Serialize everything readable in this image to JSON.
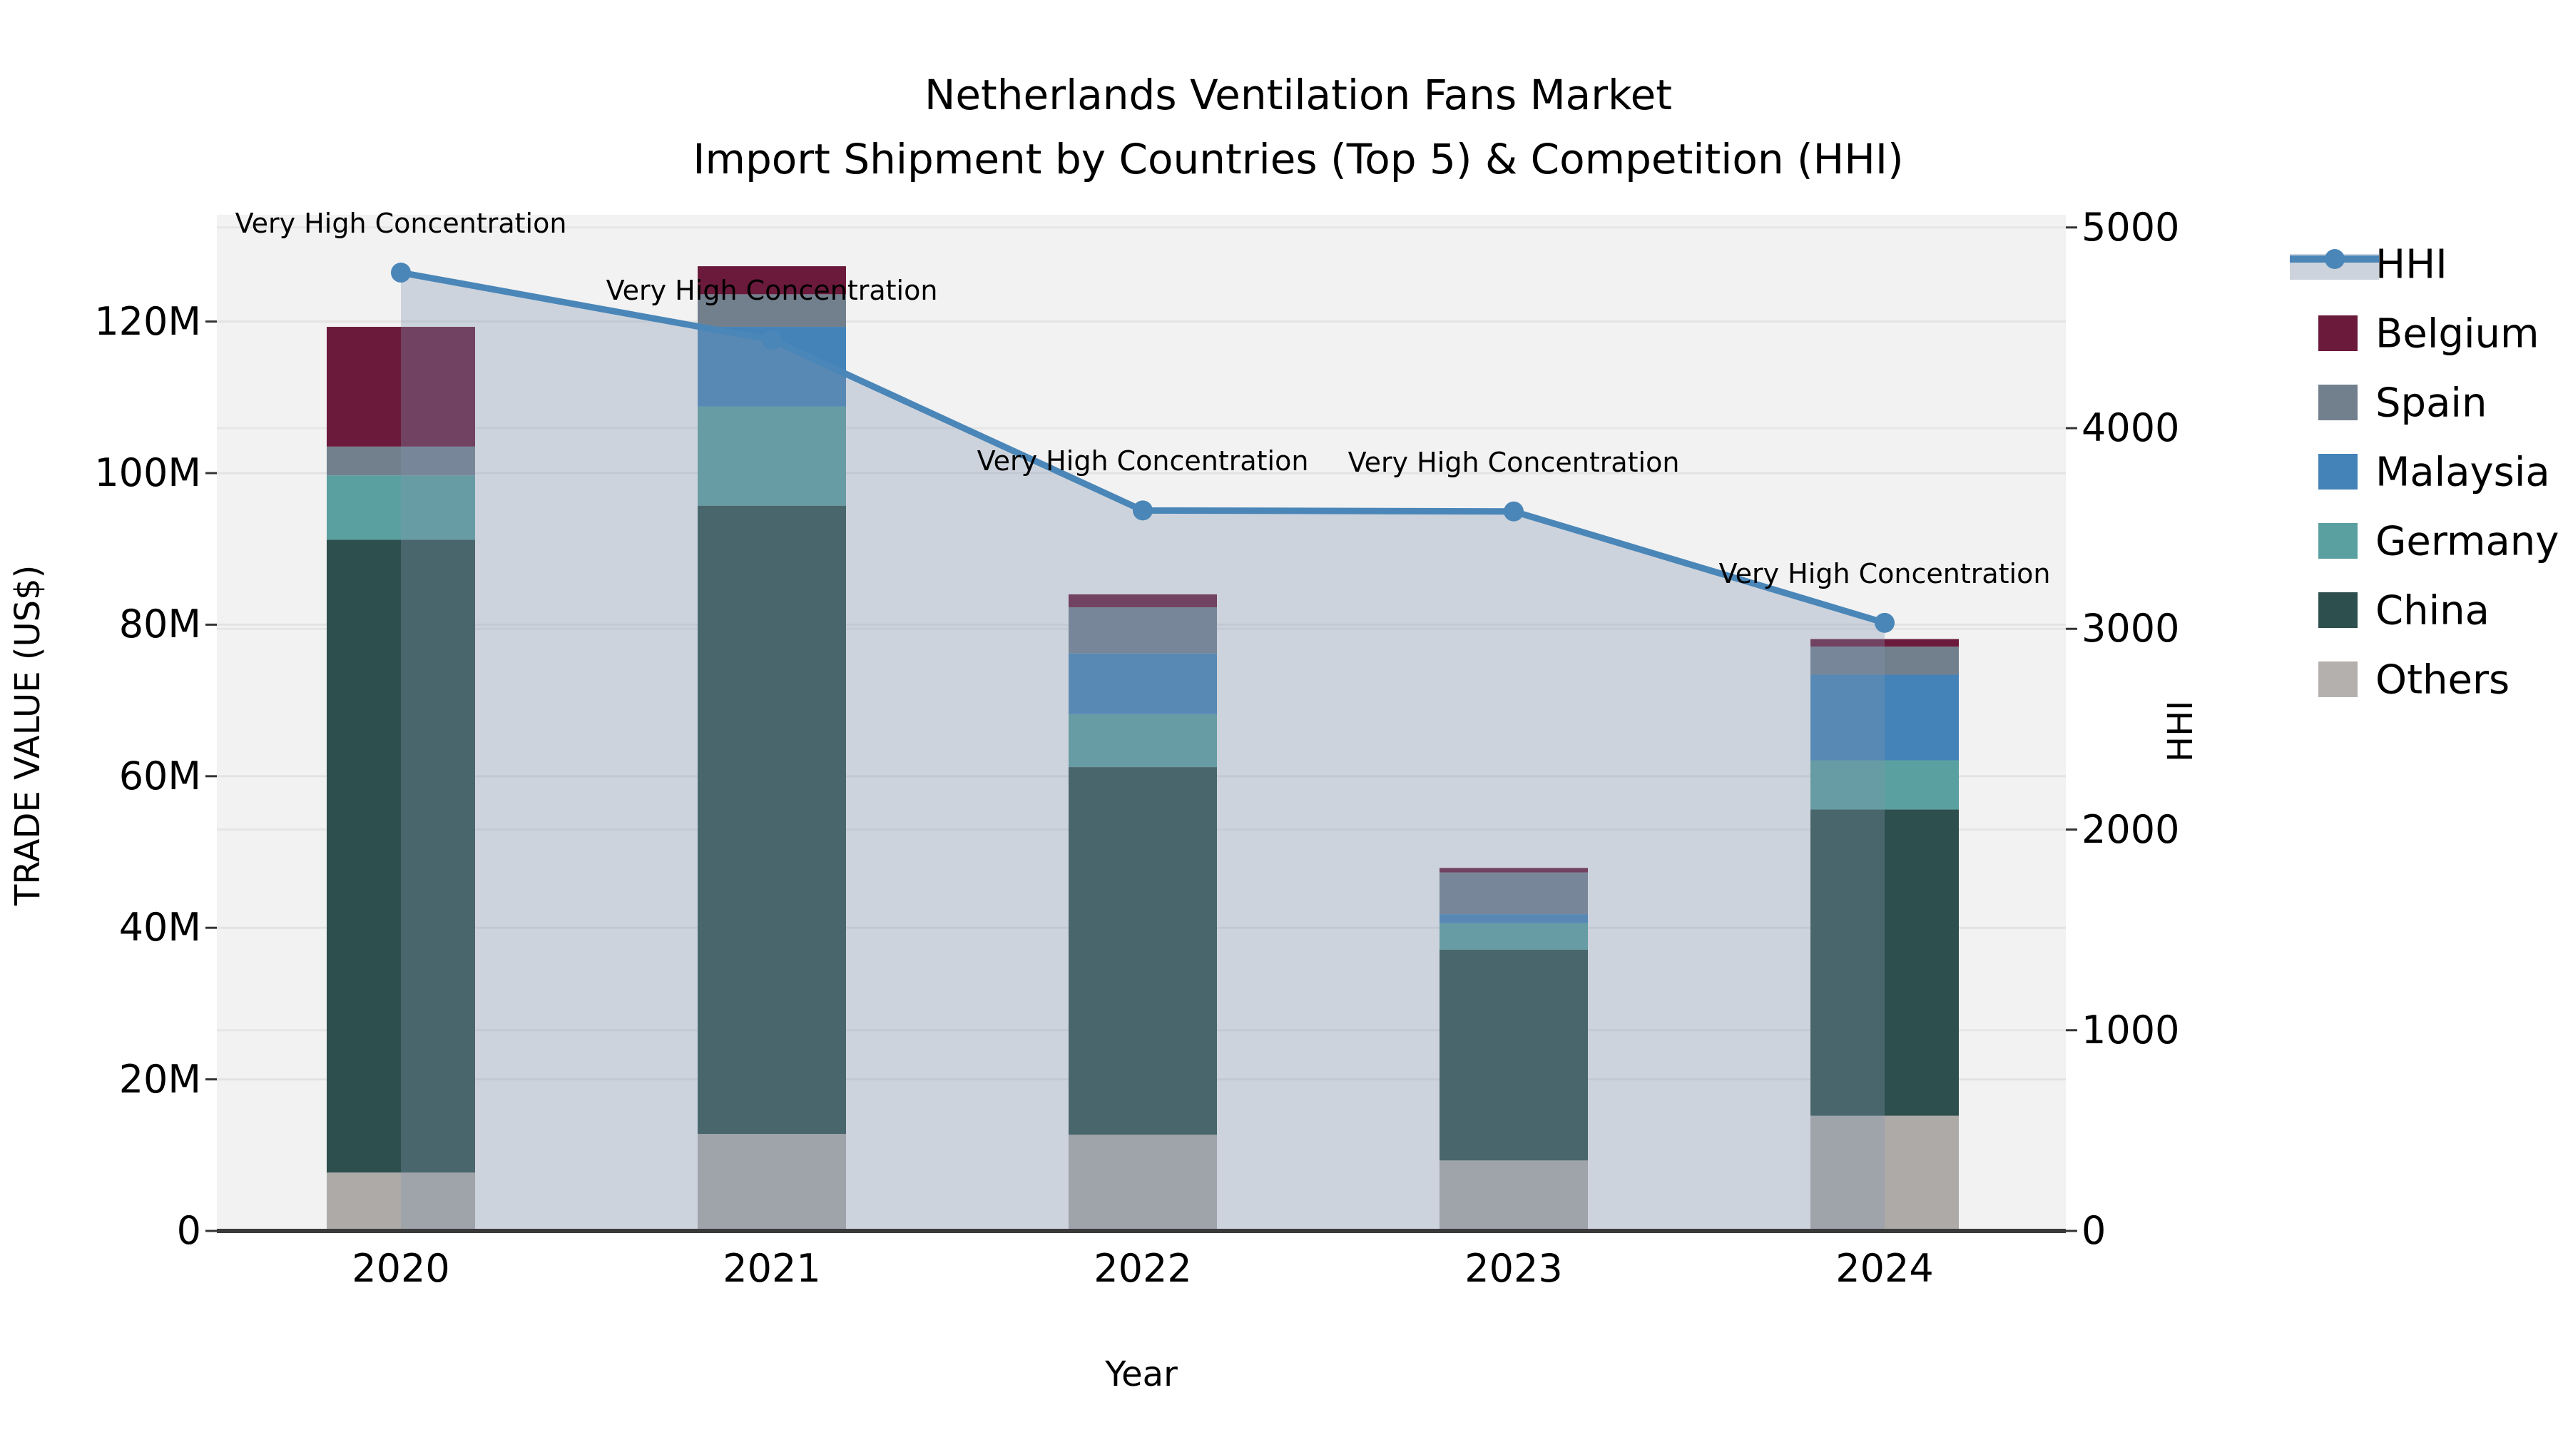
{
  "title": {
    "line1": "Netherlands Ventilation Fans Market",
    "line2": "Import Shipment by Countries (Top 5) & Competition (HHI)"
  },
  "axes": {
    "left": {
      "label": "TRADE VALUE (US$)",
      "ticks": [
        "0",
        "20M",
        "40M",
        "60M",
        "80M",
        "100M",
        "120M"
      ]
    },
    "right": {
      "label": "HHI",
      "ticks": [
        "0",
        "1000",
        "2000",
        "3000",
        "4000",
        "5000"
      ]
    },
    "x": {
      "label": "Year",
      "ticks": [
        "2020",
        "2021",
        "2022",
        "2023",
        "2024"
      ]
    }
  },
  "legend": {
    "items": [
      {
        "label": "HHI",
        "type": "line",
        "color": "#4A86B8"
      },
      {
        "label": "Belgium",
        "type": "patch",
        "color": "#6B1A3C"
      },
      {
        "label": "Spain",
        "type": "patch",
        "color": "#72808E"
      },
      {
        "label": "Malaysia",
        "type": "patch",
        "color": "#4483B8"
      },
      {
        "label": "Germany",
        "type": "patch",
        "color": "#5BA0A0"
      },
      {
        "label": "China",
        "type": "patch",
        "color": "#2D4F4D"
      },
      {
        "label": "Others",
        "type": "patch",
        "color": "#B3B0AE"
      }
    ]
  },
  "chart_data": {
    "type": "combo: stacked-bar (left axis) + line-with-area (right axis)",
    "categories": [
      "2020",
      "2021",
      "2022",
      "2023",
      "2024"
    ],
    "bar_value_unit": "million US$",
    "series": [
      {
        "name": "Others",
        "color": "#ADAAA8",
        "values": [
          7.7,
          12.8,
          12.7,
          9.3,
          15.2
        ]
      },
      {
        "name": "China",
        "color": "#2D4F4D",
        "values": [
          83.5,
          82.9,
          48.5,
          27.8,
          40.4
        ]
      },
      {
        "name": "Germany",
        "color": "#5BA0A0",
        "values": [
          8.5,
          13.1,
          7.0,
          3.5,
          6.5
        ]
      },
      {
        "name": "Malaysia",
        "color": "#4483B8",
        "values": [
          0,
          10.5,
          8.0,
          1.2,
          11.3
        ]
      },
      {
        "name": "Spain",
        "color": "#72808E",
        "values": [
          3.8,
          4.3,
          6.1,
          5.5,
          3.7
        ]
      },
      {
        "name": "Belgium",
        "color": "#6B1A3C",
        "values": [
          15.8,
          3.7,
          1.7,
          0.6,
          1.0
        ]
      }
    ],
    "bar_totals": [
      119.3,
      127.3,
      84.0,
      47.9,
      78.1
    ],
    "hhi_line": {
      "name": "HHI",
      "values": [
        4775,
        4440,
        3590,
        3585,
        3030
      ],
      "color": "#4A86B8",
      "area_fill": "rgba(130,148,175,0.33)"
    },
    "annotations": [
      "Very High Concentration",
      "Very High Concentration",
      "Very High Concentration",
      "Very High Concentration",
      "Very High Concentration"
    ],
    "ylim_left_millions": [
      0,
      134
    ],
    "ylim_right_hhi": [
      0,
      5060
    ],
    "grid": "horizontal gridlines at 20M steps and 1000-HHI steps",
    "legend_position": "outside right",
    "plot_background": "#F2F2F2"
  }
}
